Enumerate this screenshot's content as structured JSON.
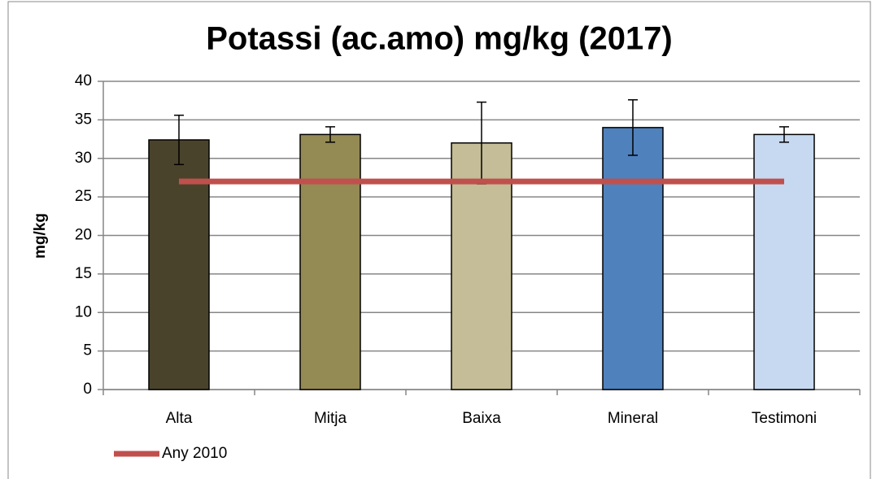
{
  "chart_data": {
    "type": "bar",
    "title": "Potassi (ac.amo) mg/kg  (2017)",
    "y_label": "mg/kg",
    "categories": [
      "Alta",
      "Mitja",
      "Baixa",
      "Mineral",
      "Testimoni"
    ],
    "series": [
      {
        "type": "bar",
        "colors": [
          "#4a432c",
          "#948a54",
          "#c4bd97",
          "#4f81bd",
          "#c6d9f1"
        ],
        "values": [
          32.4,
          33.1,
          32.0,
          34.0,
          33.1
        ],
        "errors": [
          3.2,
          1.0,
          5.3,
          3.6,
          1.0
        ]
      },
      {
        "type": "line",
        "name": "Any 2010",
        "color": "#c0504d",
        "values": [
          27,
          27,
          27,
          27,
          27
        ]
      }
    ],
    "ylim": [
      0,
      40
    ],
    "yticks": [
      0,
      5,
      10,
      15,
      20,
      25,
      30,
      35,
      40
    ],
    "grid": true,
    "legend": "bottom-left"
  }
}
